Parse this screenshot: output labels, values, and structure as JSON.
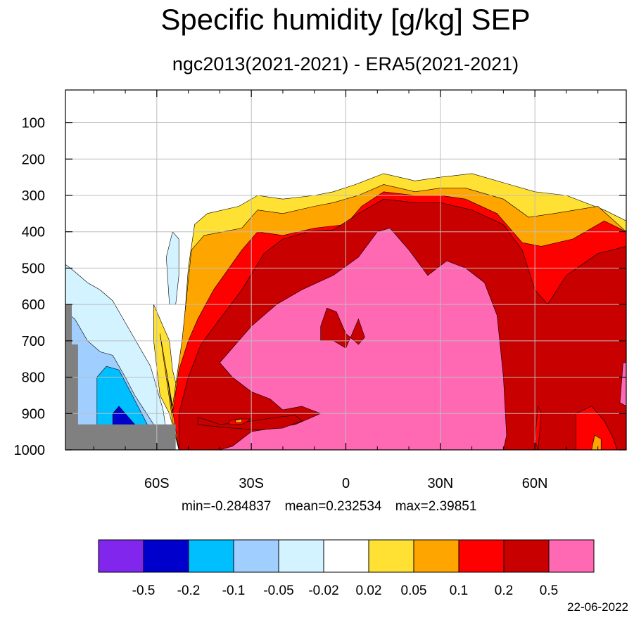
{
  "title": "Specific humidity [g/kg] SEP",
  "subtitle": "ngc2013(2021-2021) - ERA5(2021-2021)",
  "stats": {
    "min": "min=-0.284837",
    "mean": "mean=0.232534",
    "max": "max=2.39851"
  },
  "date": "22-06-2022",
  "chart_data": {
    "type": "heatmap",
    "title": "Specific humidity [g/kg] SEP",
    "subtitle": "ngc2013(2021-2021) - ERA5(2021-2021)",
    "xlabel": "",
    "ylabel": "",
    "x_ticks": [
      {
        "value": -60,
        "label": "60S"
      },
      {
        "value": -30,
        "label": "30S"
      },
      {
        "value": 0,
        "label": "0"
      },
      {
        "value": 30,
        "label": "30N"
      },
      {
        "value": 60,
        "label": "60N"
      }
    ],
    "y_ticks": [
      {
        "value": 100,
        "label": "100"
      },
      {
        "value": 200,
        "label": "200"
      },
      {
        "value": 300,
        "label": "300"
      },
      {
        "value": 400,
        "label": "400"
      },
      {
        "value": 500,
        "label": "500"
      },
      {
        "value": 600,
        "label": "600"
      },
      {
        "value": 700,
        "label": "700"
      },
      {
        "value": 800,
        "label": "800"
      },
      {
        "value": 900,
        "label": "900"
      },
      {
        "value": 1000,
        "label": "1000"
      }
    ],
    "xlim": [
      -89,
      89
    ],
    "ylim": [
      10,
      1000
    ],
    "grid": true,
    "colorbar": {
      "labels": [
        "-0.5",
        "-0.2",
        "-0.1",
        "-0.05",
        "-0.02",
        "0.02",
        "0.05",
        "0.1",
        "0.2",
        "0.5"
      ],
      "colors": [
        "#8026ED",
        "#0000CC",
        "#00BFFF",
        "#A0CFFF",
        "#D2F3FF",
        "#FFFFFF",
        "#FFE133",
        "#FFA500",
        "#FF0000",
        "#C80000",
        "#FF69B4"
      ]
    },
    "contours": [
      {
        "level": "0.02",
        "color": "#FFE133",
        "points": [
          [
            -61,
            600
          ],
          [
            -58,
            660
          ],
          [
            -56,
            700
          ],
          [
            -55,
            780
          ],
          [
            -53,
            850
          ],
          [
            -50,
            500
          ],
          [
            -48,
            380
          ],
          [
            -44,
            350
          ],
          [
            -34,
            330
          ],
          [
            -28,
            300
          ],
          [
            -20,
            310
          ],
          [
            -10,
            300
          ],
          [
            -4,
            290
          ],
          [
            3,
            270
          ],
          [
            12,
            240
          ],
          [
            22,
            260
          ],
          [
            30,
            250
          ],
          [
            40,
            240
          ],
          [
            52,
            270
          ],
          [
            60,
            290
          ],
          [
            70,
            300
          ],
          [
            82,
            340
          ],
          [
            89,
            370
          ],
          [
            89,
            1000
          ],
          [
            -53,
            1000
          ],
          [
            -56,
            900
          ],
          [
            -59,
            850
          ],
          [
            -61,
            700
          ]
        ]
      },
      {
        "level": "0.05",
        "color": "#FFA500",
        "points": [
          [
            -59,
            680
          ],
          [
            -57,
            780
          ],
          [
            -55,
            880
          ],
          [
            -52,
            700
          ],
          [
            -49,
            450
          ],
          [
            -45,
            410
          ],
          [
            -33,
            390
          ],
          [
            -28,
            340
          ],
          [
            -20,
            350
          ],
          [
            -10,
            330
          ],
          [
            -4,
            320
          ],
          [
            4,
            300
          ],
          [
            12,
            270
          ],
          [
            22,
            290
          ],
          [
            30,
            280
          ],
          [
            38,
            280
          ],
          [
            50,
            310
          ],
          [
            58,
            360
          ],
          [
            66,
            350
          ],
          [
            80,
            330
          ],
          [
            89,
            400
          ],
          [
            89,
            1000
          ],
          [
            -53,
            1000
          ],
          [
            -55,
            920
          ]
        ]
      },
      {
        "level": "0.1",
        "color": "#FF0000",
        "points": [
          [
            -57,
            780
          ],
          [
            -55,
            900
          ],
          [
            -53,
            780
          ],
          [
            -50,
            700
          ],
          [
            -47,
            640
          ],
          [
            -42,
            560
          ],
          [
            -33,
            450
          ],
          [
            -28,
            400
          ],
          [
            -20,
            410
          ],
          [
            -10,
            390
          ],
          [
            0,
            380
          ],
          [
            5,
            330
          ],
          [
            12,
            290
          ],
          [
            22,
            300
          ],
          [
            30,
            300
          ],
          [
            38,
            310
          ],
          [
            48,
            350
          ],
          [
            56,
            430
          ],
          [
            62,
            440
          ],
          [
            72,
            420
          ],
          [
            82,
            370
          ],
          [
            89,
            400
          ],
          [
            89,
            1000
          ],
          [
            -53,
            1000
          ]
        ]
      },
      {
        "level": "0.2",
        "color": "#C80000",
        "points": [
          [
            -53,
            900
          ],
          [
            -50,
            800
          ],
          [
            -46,
            710
          ],
          [
            -40,
            640
          ],
          [
            -33,
            560
          ],
          [
            -26,
            460
          ],
          [
            -20,
            420
          ],
          [
            -12,
            400
          ],
          [
            -4,
            395
          ],
          [
            4,
            350
          ],
          [
            12,
            310
          ],
          [
            22,
            320
          ],
          [
            30,
            320
          ],
          [
            40,
            340
          ],
          [
            50,
            380
          ],
          [
            56,
            450
          ],
          [
            60,
            560
          ],
          [
            64,
            600
          ],
          [
            70,
            520
          ],
          [
            80,
            460
          ],
          [
            89,
            440
          ],
          [
            89,
            1000
          ],
          [
            -53,
            1000
          ]
        ]
      },
      {
        "level": "0.5",
        "color": "#FF69B4",
        "points": [
          [
            -40,
            760
          ],
          [
            -36,
            800
          ],
          [
            -30,
            840
          ],
          [
            -24,
            860
          ],
          [
            -20,
            890
          ],
          [
            -14,
            880
          ],
          [
            -8,
            900
          ],
          [
            -16,
            930
          ],
          [
            -30,
            950
          ],
          [
            -36,
            990
          ],
          [
            -40,
            1000
          ],
          [
            50,
            1000
          ],
          [
            51,
            960
          ],
          [
            50,
            800
          ],
          [
            48,
            630
          ],
          [
            44,
            540
          ],
          [
            38,
            500
          ],
          [
            32,
            480
          ],
          [
            26,
            520
          ],
          [
            20,
            450
          ],
          [
            14,
            390
          ],
          [
            10,
            400
          ],
          [
            4,
            470
          ],
          [
            -4,
            520
          ],
          [
            -14,
            560
          ],
          [
            -22,
            600
          ],
          [
            -30,
            660
          ],
          [
            -36,
            720
          ]
        ]
      },
      {
        "level": "0.2",
        "color": "#C80000",
        "points": [
          [
            -8,
            660
          ],
          [
            -6,
            610
          ],
          [
            -3,
            620
          ],
          [
            0,
            680
          ],
          [
            4,
            710
          ],
          [
            6,
            690
          ],
          [
            4,
            640
          ],
          [
            2,
            680
          ],
          [
            0,
            720
          ],
          [
            -4,
            700
          ],
          [
            -8,
            700
          ]
        ]
      },
      {
        "level": "0.2",
        "color": "#C80000",
        "points": [
          [
            -47,
            910
          ],
          [
            -40,
            930
          ],
          [
            -34,
            925
          ],
          [
            -29,
            920
          ],
          [
            -22,
            910
          ],
          [
            -16,
            905
          ],
          [
            -14,
            920
          ],
          [
            -20,
            940
          ],
          [
            -28,
            945
          ],
          [
            -36,
            940
          ],
          [
            -42,
            935
          ],
          [
            -47,
            930
          ]
        ]
      },
      {
        "level": "0.1",
        "color": "#FF0000",
        "points": [
          [
            -37,
            920
          ],
          [
            -34,
            915
          ],
          [
            -30,
            915
          ],
          [
            -33,
            930
          ],
          [
            -37,
            930
          ]
        ]
      },
      {
        "level": "0.05",
        "color": "#FFA500",
        "points": [
          [
            -35,
            918
          ],
          [
            -33,
            915
          ],
          [
            -33,
            925
          ],
          [
            -35,
            925
          ]
        ]
      },
      {
        "level": "-0.02",
        "color": "#D2F3FF",
        "points": [
          [
            -89,
            490
          ],
          [
            -86,
            510
          ],
          [
            -82,
            540
          ],
          [
            -78,
            560
          ],
          [
            -74,
            590
          ],
          [
            -70,
            650
          ],
          [
            -66,
            710
          ],
          [
            -62,
            770
          ],
          [
            -60,
            830
          ],
          [
            -58,
            890
          ],
          [
            -57,
            950
          ],
          [
            -58,
            1000
          ],
          [
            -89,
            1000
          ]
        ]
      },
      {
        "level": "-0.05",
        "color": "#A0CFFF",
        "points": [
          [
            -89,
            620
          ],
          [
            -86,
            640
          ],
          [
            -82,
            700
          ],
          [
            -78,
            730
          ],
          [
            -74,
            740
          ],
          [
            -70,
            800
          ],
          [
            -67,
            850
          ],
          [
            -64,
            890
          ],
          [
            -61,
            930
          ],
          [
            -60,
            1000
          ],
          [
            -89,
            1000
          ]
        ]
      },
      {
        "level": "-0.1",
        "color": "#00BFFF",
        "points": [
          [
            -79,
            800
          ],
          [
            -76,
            770
          ],
          [
            -72,
            780
          ],
          [
            -69,
            830
          ],
          [
            -66,
            880
          ],
          [
            -63,
            930
          ],
          [
            -62,
            1000
          ],
          [
            -79,
            1000
          ]
        ]
      },
      {
        "level": "-0.2",
        "color": "#0000CC",
        "points": [
          [
            -74,
            900
          ],
          [
            -72,
            880
          ],
          [
            -70,
            900
          ],
          [
            -68,
            920
          ],
          [
            -66,
            940
          ],
          [
            -74,
            940
          ]
        ]
      },
      {
        "level": "-0.02",
        "color": "#D2F3FF",
        "points": [
          [
            -57,
            470
          ],
          [
            -55,
            400
          ],
          [
            -53,
            420
          ],
          [
            -53,
            520
          ],
          [
            -54,
            600
          ],
          [
            -56,
            600
          ]
        ]
      },
      {
        "level": "0.5",
        "color": "#FF69B4",
        "points": [
          [
            87,
            870
          ],
          [
            88,
            760
          ],
          [
            89,
            760
          ],
          [
            89,
            880
          ]
        ]
      },
      {
        "level": "0.1",
        "color": "#FF0000",
        "points": [
          [
            60,
            970
          ],
          [
            61,
            880
          ],
          [
            62,
            900
          ],
          [
            61,
            1000
          ]
        ]
      },
      {
        "level": "0.1",
        "color": "#FF0000",
        "points": [
          [
            73,
            1000
          ],
          [
            73,
            900
          ],
          [
            78,
            880
          ],
          [
            82,
            920
          ],
          [
            85,
            970
          ],
          [
            86,
            1000
          ]
        ]
      },
      {
        "level": "0.05",
        "color": "#FFA500",
        "points": [
          [
            78,
            1000
          ],
          [
            79,
            960
          ],
          [
            81,
            970
          ],
          [
            81,
            1000
          ]
        ]
      }
    ],
    "missing": [
      [
        -89,
        600
      ],
      [
        -87,
        600
      ],
      [
        -87,
        710
      ],
      [
        -85,
        710
      ],
      [
        -85,
        930
      ],
      [
        -54,
        930
      ],
      [
        -54,
        1000
      ],
      [
        -89,
        1000
      ]
    ]
  }
}
